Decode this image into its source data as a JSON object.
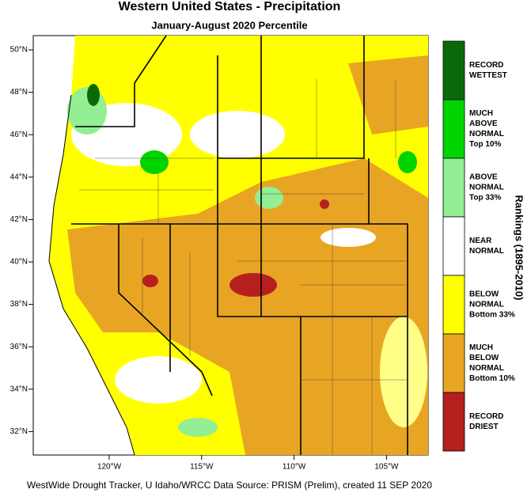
{
  "header": {
    "title": "Western United States - Precipitation",
    "subtitle": "January-August 2020 Percentile"
  },
  "map": {
    "lat_labels": [
      "50°N",
      "48°N",
      "46°N",
      "44°N",
      "42°N",
      "40°N",
      "38°N",
      "36°N",
      "34°N",
      "32°N"
    ],
    "lon_labels": [
      "120°W",
      "115°W",
      "110°W",
      "105°W"
    ]
  },
  "legend": {
    "title": "Rankings (1895-2010)",
    "items": [
      {
        "lines": [
          "RECORD",
          "WETTEST"
        ],
        "color": "#0a6a0a"
      },
      {
        "lines": [
          "MUCH",
          "ABOVE",
          "NORMAL",
          "Top 10%"
        ],
        "color": "#00d400"
      },
      {
        "lines": [
          "ABOVE",
          "NORMAL",
          "Top 33%"
        ],
        "color": "#94ee94"
      },
      {
        "lines": [
          "NEAR",
          "NORMAL"
        ],
        "color": "#ffffff"
      },
      {
        "lines": [
          "BELOW",
          "NORMAL",
          "Bottom 33%"
        ],
        "color": "#ffff00"
      },
      {
        "lines": [
          "MUCH",
          "BELOW",
          "NORMAL",
          "Bottom 10%"
        ],
        "color": "#e8a524"
      },
      {
        "lines": [
          "RECORD",
          "DRIEST"
        ],
        "color": "#b5201f"
      }
    ]
  },
  "footer": "WestWide Drought Tracker, U Idaho/WRCC Data Source: PRISM (Prelim), created 11 SEP 2020"
}
